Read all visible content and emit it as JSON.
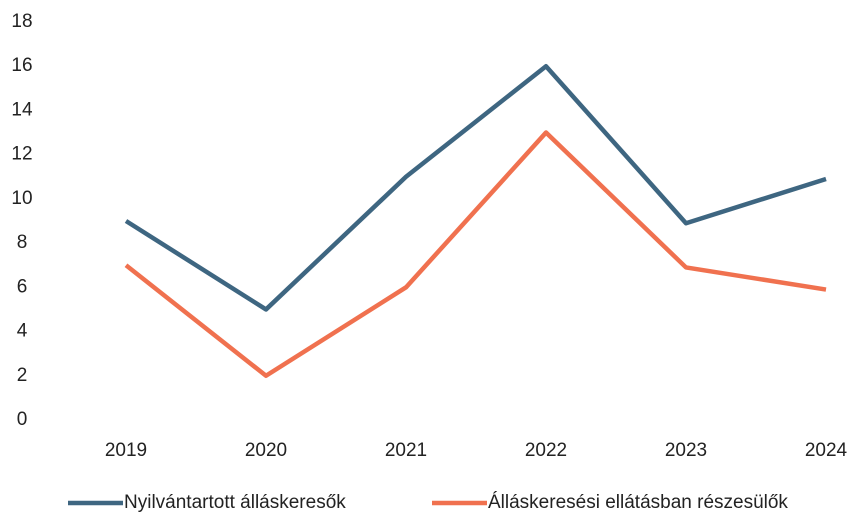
{
  "chart_data": {
    "type": "line",
    "categories": [
      "2019",
      "2020",
      "2021",
      "2022",
      "2023",
      "2024"
    ],
    "series": [
      {
        "name": "Nyilvántartott álláskeresők",
        "color": "#3e6681",
        "values": [
          9,
          5,
          11,
          16,
          8.9,
          10.9
        ]
      },
      {
        "name": "Álláskeresési ellátásban részesülők",
        "color": "#f0714f",
        "values": [
          7,
          2,
          6,
          13,
          6.9,
          5.9
        ]
      }
    ],
    "ylim": [
      0,
      18
    ],
    "yticks": [
      0,
      2,
      4,
      6,
      8,
      10,
      12,
      14,
      16,
      18
    ],
    "grid": false,
    "legend": "bottom"
  }
}
